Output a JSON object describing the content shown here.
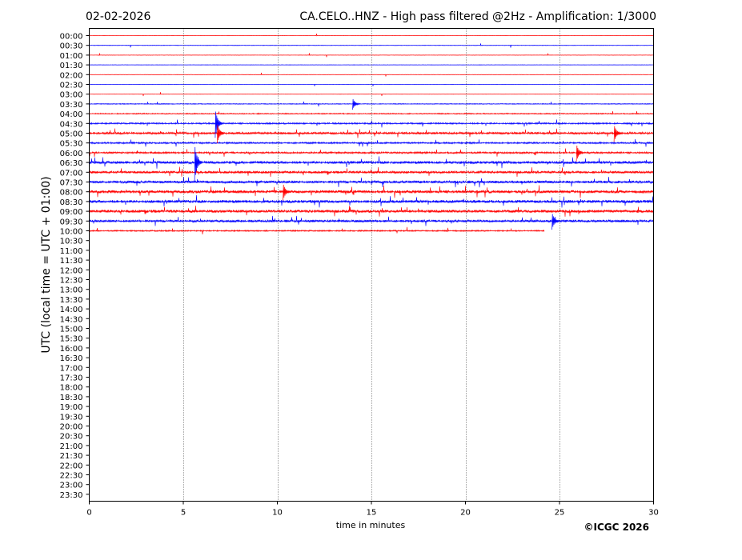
{
  "chart_data": {
    "type": "helicorder",
    "date": "02-02-2026",
    "title": "CA.CELO..HNZ - High pass filtered @2Hz - Amplification: 1/3000",
    "xlabel": "time in minutes",
    "ylabel": "UTC (local time = UTC + 01:00)",
    "copyright": "©ICGC 2026",
    "xlim": [
      0,
      30
    ],
    "x_ticks": [
      0,
      5,
      10,
      15,
      20,
      25,
      30
    ],
    "vertical_gridlines_at_minutes": [
      5,
      10,
      15,
      20,
      25
    ],
    "trace_colors": [
      "#ff0000",
      "#0000ff"
    ],
    "rows": [
      "00:00",
      "00:30",
      "01:00",
      "01:30",
      "02:00",
      "02:30",
      "03:00",
      "03:30",
      "04:00",
      "04:30",
      "05:00",
      "05:30",
      "06:00",
      "06:30",
      "07:00",
      "07:30",
      "08:00",
      "08:30",
      "09:00",
      "09:30",
      "10:00",
      "10:30",
      "11:00",
      "11:30",
      "12:00",
      "12:30",
      "13:00",
      "13:30",
      "14:00",
      "14:30",
      "15:00",
      "15:30",
      "16:00",
      "16:30",
      "17:00",
      "17:30",
      "18:00",
      "18:30",
      "19:00",
      "19:30",
      "20:00",
      "20:30",
      "21:00",
      "21:30",
      "22:00",
      "22:30",
      "23:00",
      "23:30"
    ],
    "data_end": {
      "row": "10:00",
      "minute": 24.2
    },
    "activity_level": [
      0.05,
      0.12,
      0.06,
      0.08,
      0.06,
      0.05,
      0.06,
      0.2,
      0.3,
      0.45,
      0.7,
      0.5,
      0.55,
      0.9,
      0.8,
      0.85,
      1.0,
      0.95,
      0.95,
      0.8,
      0.4
    ],
    "notable_events": [
      {
        "row": "04:30",
        "minute": 6.7,
        "amplitude": 1.0
      },
      {
        "row": "05:00",
        "minute": 6.8,
        "amplitude": 0.7
      },
      {
        "row": "05:00",
        "minute": 27.9,
        "amplitude": 0.6
      },
      {
        "row": "06:30",
        "minute": 5.6,
        "amplitude": 1.3
      },
      {
        "row": "06:00",
        "minute": 25.9,
        "amplitude": 0.6
      },
      {
        "row": "08:00",
        "minute": 10.3,
        "amplitude": 0.6
      },
      {
        "row": "09:30",
        "minute": 24.6,
        "amplitude": 0.6
      },
      {
        "row": "03:30",
        "minute": 14.0,
        "amplitude": 0.4
      }
    ]
  }
}
